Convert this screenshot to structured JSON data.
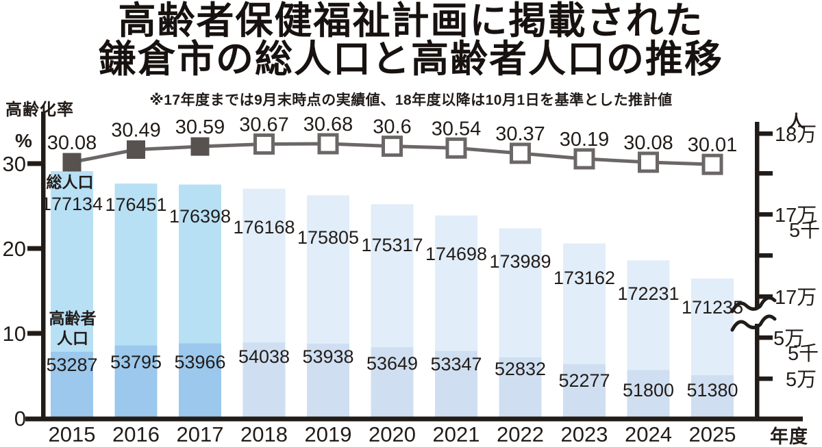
{
  "title": {
    "line1": "高齢者保健福祉計画に掲載された",
    "line2": "鎌倉市の総人口と高齢者人口の推移"
  },
  "note": "※17年度までは9月末時点の実績値、18年度以降は10月1日を基準とした推計値",
  "series_labels": {
    "total": "総人口",
    "elderly_line1": "高齢者",
    "elderly_line2": "人口"
  },
  "colors": {
    "bar_total_actual": "#b7e0f5",
    "bar_elderly_actual": "#9bc8ec",
    "bar_total_estimate": "#e1edf9",
    "bar_elderly_estimate": "#cfdff1",
    "line": "#6b6766",
    "marker_actual_fill": "#57524f",
    "marker_estimate_fill": "#ffffff",
    "axis": "#221c19",
    "text": "#221c19"
  },
  "chart_data": {
    "type": "bar+line",
    "title": "高齢者保健福祉計画に掲載された鎌倉市の総人口と高齢者人口の推移",
    "note": "※17年度までは9月末時点の実績値、18年度以降は10月1日を基準とした推計値",
    "categories": [
      "2015",
      "2016",
      "2017",
      "2018",
      "2019",
      "2020",
      "2021",
      "2022",
      "2023",
      "2024",
      "2025"
    ],
    "series": [
      {
        "name": "総人口",
        "type": "bar",
        "axis": "right",
        "unit": "人",
        "values": [
          177134,
          176451,
          176398,
          176168,
          175805,
          175317,
          174698,
          173989,
          173162,
          172231,
          171235
        ]
      },
      {
        "name": "高齢者人口",
        "type": "bar",
        "axis": "right",
        "unit": "人",
        "values": [
          53287,
          53795,
          53966,
          54038,
          53938,
          53649,
          53347,
          52832,
          52277,
          51800,
          51380
        ]
      },
      {
        "name": "高齢化率",
        "type": "line",
        "axis": "left",
        "unit": "%",
        "values": [
          30.08,
          30.49,
          30.59,
          30.67,
          30.68,
          30.6,
          30.54,
          30.37,
          30.19,
          30.08,
          30.01
        ]
      }
    ],
    "actual_count": 3,
    "left_axis": {
      "title": "高齢化率",
      "unit": "%",
      "ticks": [
        "30",
        "20",
        "10",
        "0"
      ]
    },
    "right_axis": {
      "unit": "人",
      "ticks": [
        [
          "18万",
          ""
        ],
        [
          "",
          ""
        ],
        [
          "17万",
          "5千"
        ],
        [
          "",
          ""
        ],
        [
          "17万",
          ""
        ],
        [
          "5万",
          "5千"
        ],
        [
          "5万",
          ""
        ]
      ],
      "axis_break": true
    },
    "x_axis": {
      "unit": "年度"
    }
  }
}
